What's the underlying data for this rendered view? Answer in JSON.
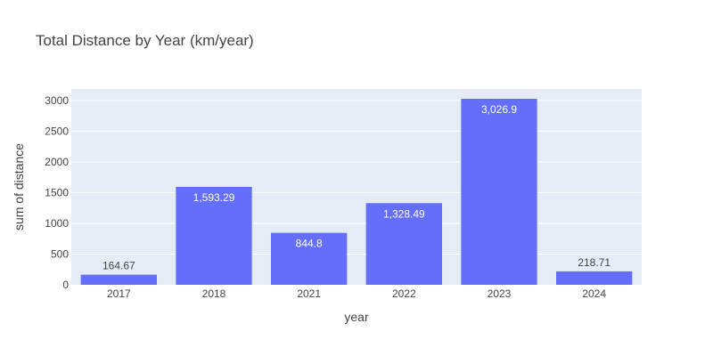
{
  "chart_data": {
    "type": "bar",
    "title": "Total Distance by Year (km/year)",
    "xlabel": "year",
    "ylabel": "sum of distance",
    "categories": [
      "2017",
      "2018",
      "2021",
      "2022",
      "2023",
      "2024"
    ],
    "values": [
      164.67,
      1593.29,
      844.8,
      1328.49,
      3026.9,
      218.71
    ],
    "value_labels": [
      "164.67",
      "1,593.29",
      "844.8",
      "1,328.49",
      "3,026.9",
      "218.71"
    ],
    "ylim": [
      0,
      3186
    ],
    "yticks": [
      0,
      500,
      1000,
      1500,
      2000,
      2500,
      3000
    ],
    "grid": true,
    "legend": "none",
    "colors": {
      "bar": "#636efa",
      "plot_background": "#e5ecf6",
      "grid": "#ffffff",
      "label_inside": "#ffffff",
      "label_outside": "#444444"
    }
  }
}
